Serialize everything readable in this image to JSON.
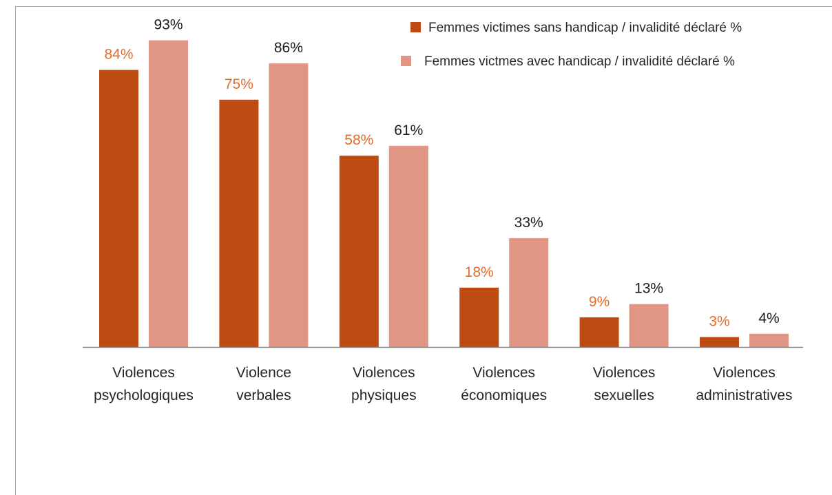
{
  "chart_data": {
    "type": "bar",
    "title": "",
    "xlabel": "",
    "ylabel": "",
    "ylim": [
      0,
      100
    ],
    "grid": false,
    "legend_position": "top-right",
    "categories": [
      [
        "Violences",
        "psychologiques"
      ],
      [
        "Violence",
        "verbales"
      ],
      [
        "Violences",
        "physiques"
      ],
      [
        "Violences",
        "économiques"
      ],
      [
        "Violences",
        "sexuelles"
      ],
      [
        "Violences",
        "administratives"
      ]
    ],
    "series": [
      {
        "name": "Femmes victimes sans handicap / invalidité déclaré %",
        "values": [
          84,
          75,
          58,
          18,
          9,
          3
        ],
        "labels": [
          "84%",
          "75%",
          "58%",
          "18%",
          "9%",
          "3%"
        ],
        "color": "#bd4b12",
        "label_color": "#e46c2b"
      },
      {
        "name": "Femmes victmes avec handicap / invalidité déclaré %",
        "values": [
          93,
          86,
          61,
          33,
          13,
          4
        ],
        "labels": [
          "93%",
          "86%",
          "61%",
          "33%",
          "13%",
          "4%"
        ],
        "color": "#e09585",
        "label_color": "#1a1a1a"
      }
    ],
    "axis_color": "#808080"
  }
}
